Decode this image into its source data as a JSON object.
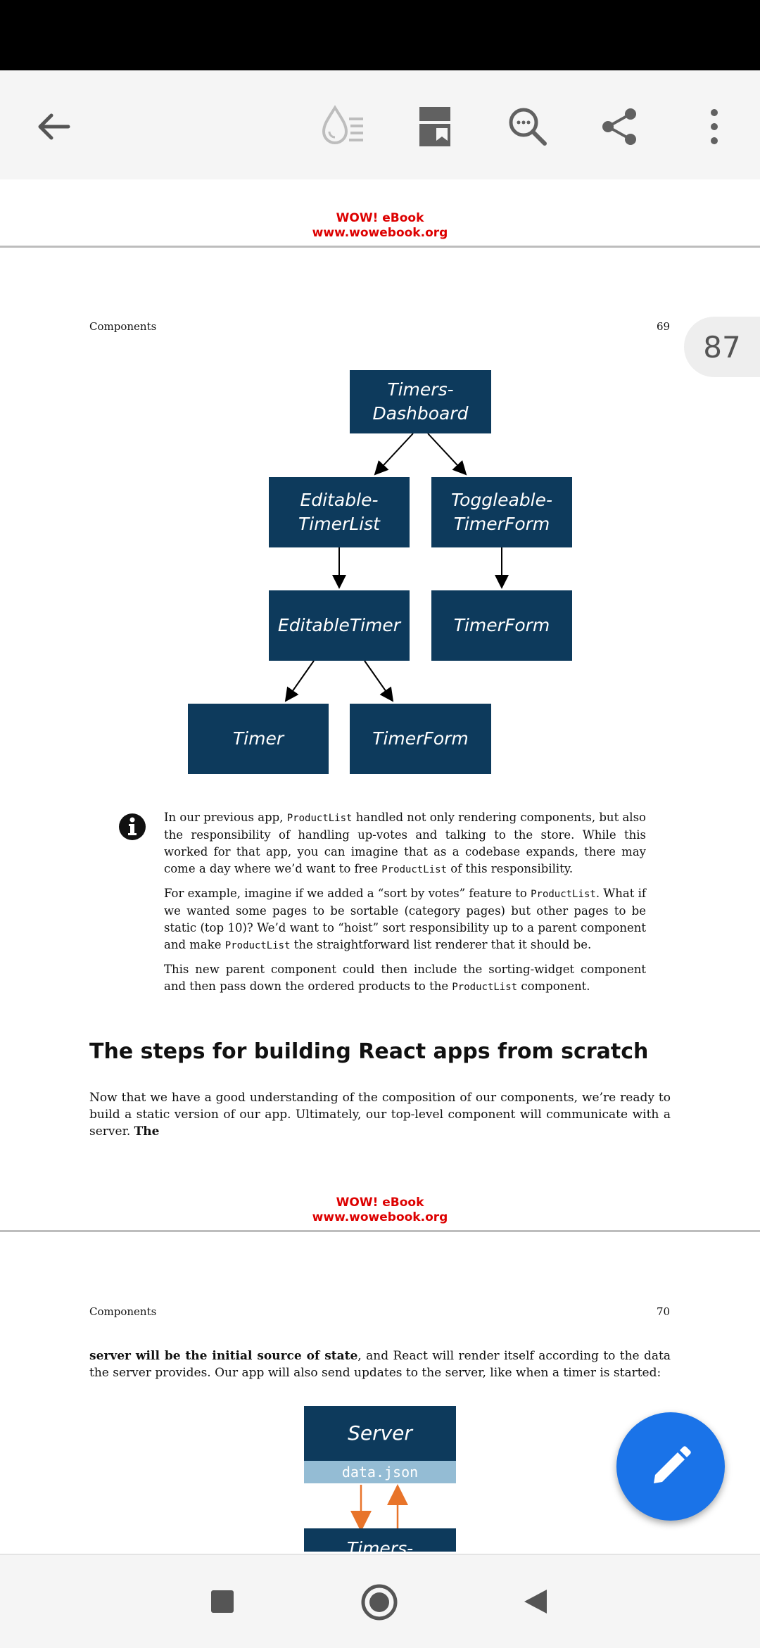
{
  "toolbar": {
    "back_icon": "arrow-left-icon",
    "icons": [
      "water-drop-lines-icon",
      "bookmark-page-icon",
      "search-zoom-icon",
      "share-icon",
      "more-vert-icon"
    ]
  },
  "watermark": {
    "line1": "WOW! eBook",
    "line2": "www.wowebook.org"
  },
  "page69": {
    "running_head": "Components",
    "page_number": "69",
    "diagram": {
      "boxes": [
        {
          "id": "timers-dashboard",
          "line1": "Timers-",
          "line2": "Dashboard"
        },
        {
          "id": "editable-timerlist",
          "line1": "Editable-",
          "line2": "TimerList"
        },
        {
          "id": "toggleable-timerform",
          "line1": "Toggleable-",
          "line2": "TimerForm"
        },
        {
          "id": "editabletimer",
          "line1": "EditableTimer",
          "line2": ""
        },
        {
          "id": "timerform-right",
          "line1": "TimerForm",
          "line2": ""
        },
        {
          "id": "timer",
          "line1": "Timer",
          "line2": ""
        },
        {
          "id": "timerform-bottom",
          "line1": "TimerForm",
          "line2": ""
        }
      ]
    },
    "note": {
      "icon": "info-icon",
      "p1_a": "In our previous app,",
      "p1_code1": "ProductList",
      "p1_b": "handled not only rendering components, but also the responsibility of handling up-votes and talking to the store. While this worked for that app, you can imagine that as a codebase expands, there may come a day where we’d want to free",
      "p1_code2": "ProductList",
      "p1_c": "of this responsibility.",
      "p2_a": "For example, imagine if we added a “sort by votes” feature to",
      "p2_code1": "ProductList",
      "p2_b": ". What if we wanted some pages to be sortable (category pages) but other pages to be static (top 10)? We’d want to “hoist” sort responsibility up to a parent component and make",
      "p2_code2": "ProductList",
      "p2_c": "the straightforward list renderer that it should be.",
      "p3_a": "This new parent component could then include the sorting-widget component and then pass down the ordered products to the",
      "p3_code1": "ProductList",
      "p3_b": "component."
    },
    "heading": "The steps for building React apps from scratch",
    "body_a": "Now that we have a good understanding of the composition of our components, we’re ready to build a static version of our app. Ultimately, our top-level component will communicate with a server.",
    "body_bold": "The"
  },
  "page70": {
    "running_head": "Components",
    "page_number": "70",
    "body_bold": "server will be the initial source of state",
    "body_a": ", and React will render itself according to the data the server provides. Our app will also send updates to the server, like when a timer is started:",
    "diagram": {
      "server": "Server",
      "file": "data.json",
      "partial": "Timers-"
    }
  },
  "page_badge": "87",
  "fab_icon": "pencil-icon",
  "nav": {
    "icons": [
      "recents-square-icon",
      "home-circle-icon",
      "back-triangle-icon"
    ]
  },
  "colors": {
    "box": "#0d3a5c",
    "watermark": "#dd0000",
    "fab": "#1a73e8",
    "arrow_orange": "#e8742a",
    "file_bar": "#94bcd4"
  }
}
